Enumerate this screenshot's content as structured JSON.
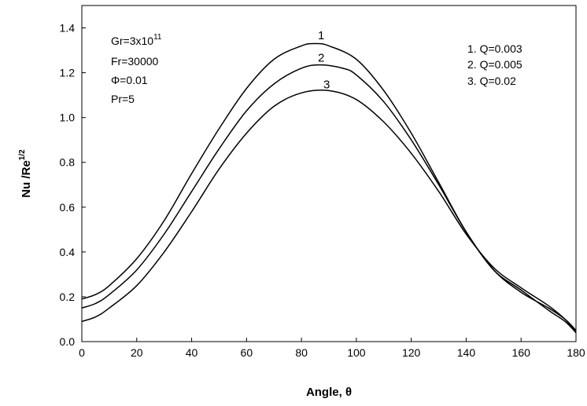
{
  "chart_data": {
    "type": "line",
    "title": "",
    "xlabel": "Angle, θ",
    "ylabel": {
      "base": "Nu /Re",
      "sup": "1/2"
    },
    "xlim": [
      0,
      180
    ],
    "ylim": [
      0.0,
      1.5
    ],
    "xticks": [
      "0",
      "20",
      "40",
      "60",
      "80",
      "100",
      "120",
      "140",
      "160",
      "180"
    ],
    "yticks": [
      "0.0",
      "0.2",
      "0.4",
      "0.6",
      "0.8",
      "1.0",
      "1.2",
      "1.4"
    ],
    "grid": false,
    "parameters": [
      {
        "text": "Gr=3x10",
        "sup": "11"
      },
      {
        "text": "Fr=30000"
      },
      {
        "text": "Φ=0.01"
      },
      {
        "text": "Pr=5"
      }
    ],
    "legend_entries": [
      "1. Q=0.003",
      "2. Q=0.005",
      "3. Q=0.02"
    ],
    "series": [
      {
        "label": "1",
        "label_at": [
          86,
          1.35
        ],
        "x": [
          0,
          5,
          10,
          20,
          30,
          40,
          50,
          60,
          70,
          80,
          85,
          90,
          100,
          110,
          120,
          130,
          140,
          150,
          160,
          170,
          176,
          180
        ],
        "y": [
          0.19,
          0.21,
          0.25,
          0.37,
          0.54,
          0.75,
          0.95,
          1.13,
          1.26,
          1.32,
          1.33,
          1.32,
          1.26,
          1.12,
          0.93,
          0.71,
          0.49,
          0.32,
          0.22,
          0.15,
          0.1,
          0.05
        ]
      },
      {
        "label": "2",
        "label_at": [
          86,
          1.25
        ],
        "x": [
          0,
          5,
          10,
          20,
          30,
          40,
          50,
          60,
          70,
          80,
          87,
          95,
          100,
          110,
          120,
          130,
          140,
          150,
          160,
          170,
          176,
          180
        ],
        "y": [
          0.15,
          0.17,
          0.21,
          0.32,
          0.48,
          0.67,
          0.86,
          1.03,
          1.15,
          1.22,
          1.235,
          1.22,
          1.19,
          1.07,
          0.9,
          0.7,
          0.49,
          0.32,
          0.23,
          0.14,
          0.09,
          0.04
        ]
      },
      {
        "label": "3",
        "label_at": [
          88,
          1.13
        ],
        "x": [
          0,
          5,
          10,
          20,
          30,
          40,
          50,
          60,
          70,
          80,
          90,
          100,
          110,
          120,
          130,
          140,
          150,
          160,
          170,
          176,
          180
        ],
        "y": [
          0.09,
          0.11,
          0.15,
          0.25,
          0.4,
          0.58,
          0.77,
          0.93,
          1.05,
          1.11,
          1.12,
          1.08,
          0.98,
          0.84,
          0.67,
          0.48,
          0.33,
          0.24,
          0.16,
          0.1,
          0.04
        ]
      }
    ]
  }
}
